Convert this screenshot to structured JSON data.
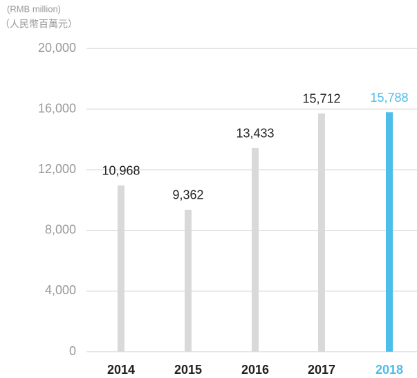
{
  "chart_data": {
    "type": "bar",
    "unit_label": [
      "(RMB million)",
      "（人民幣百萬元）"
    ],
    "categories": [
      "2014",
      "2015",
      "2016",
      "2017",
      "2018"
    ],
    "values": [
      10968,
      9362,
      13433,
      15712,
      15788
    ],
    "value_labels": [
      "10,968",
      "9,362",
      "13,433",
      "15,712",
      "15,788"
    ],
    "colors": [
      "#d9d9d9",
      "#d9d9d9",
      "#d9d9d9",
      "#d9d9d9",
      "#4dbde9"
    ],
    "text_colors": [
      "#222222",
      "#222222",
      "#222222",
      "#222222",
      "#4dbde9"
    ],
    "ylim": [
      0,
      20000
    ],
    "yticks": [
      0,
      {
        "value": 4000,
        "label": "4,000"
      },
      {
        "value": 8000,
        "label": "8,000"
      },
      {
        "value": 12000,
        "label": "12,000"
      },
      {
        "value": 16000,
        "label": "16,000"
      },
      {
        "value": 20000,
        "label": "20,000"
      }
    ],
    "grid": true
  }
}
